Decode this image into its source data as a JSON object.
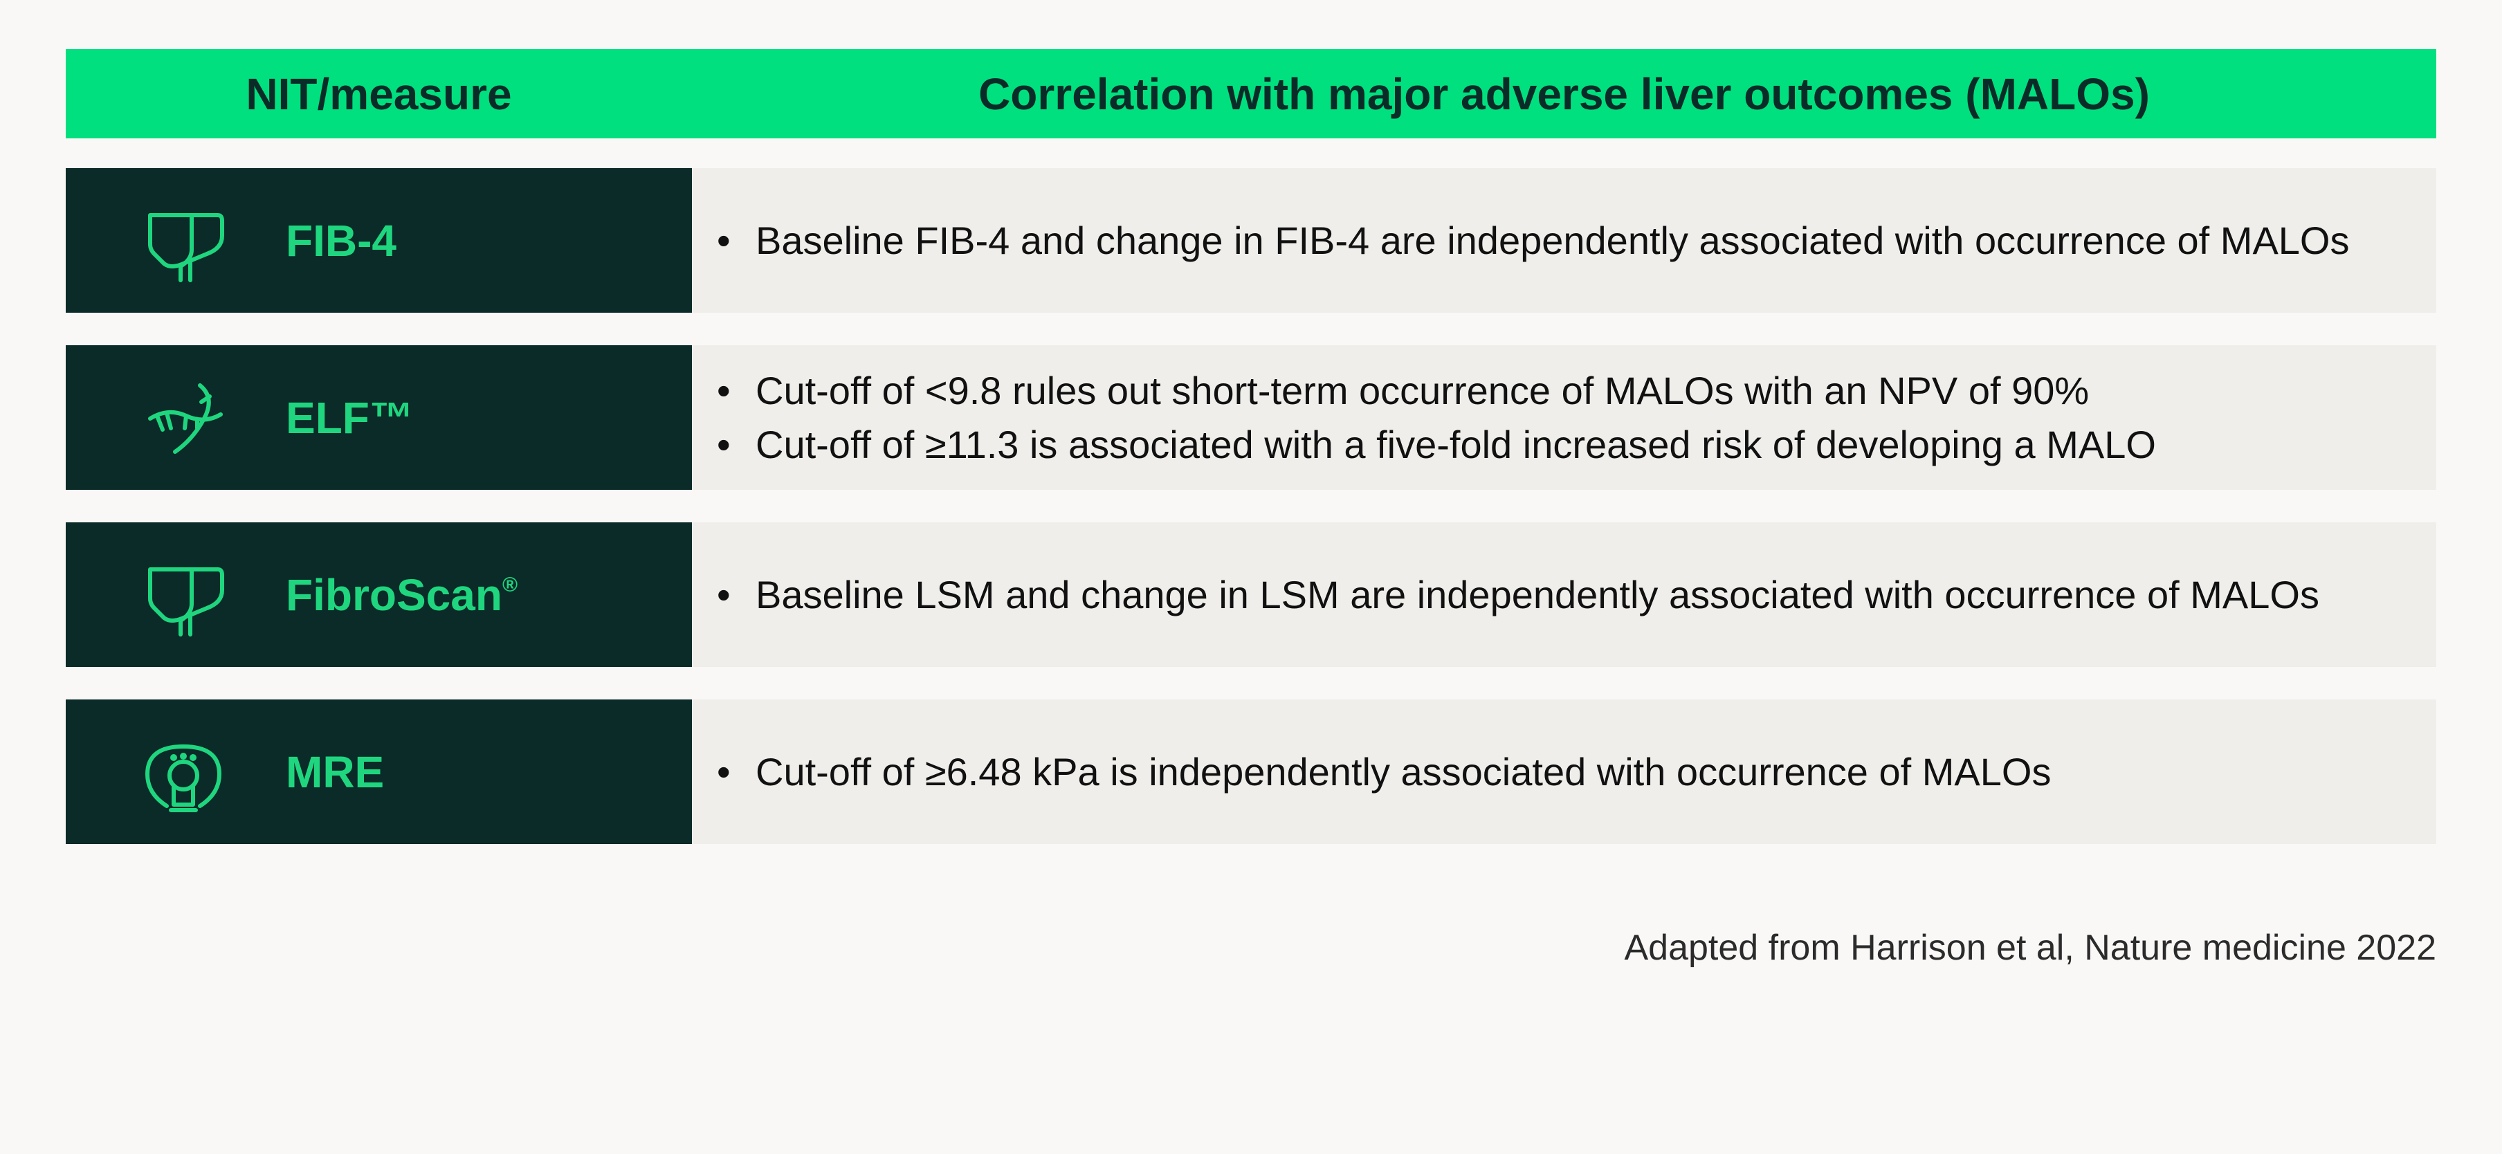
{
  "header": {
    "col1": "NIT/measure",
    "col2": "Correlation with major adverse liver outcomes (MALOs)"
  },
  "colors": {
    "header_bg": "#00e07e",
    "row_left_bg": "#0a2b28",
    "row_right_bg": "#efeeeb",
    "accent_green": "#1fd67f",
    "page_bg": "#f9f8f7"
  },
  "rows": [
    {
      "icon": "liver-icon",
      "label": "FIB-4",
      "label_sup": "",
      "bullets": [
        "Baseline FIB-4 and change in FIB-4 are independently associated with occurrence of MALOs"
      ]
    },
    {
      "icon": "dna-icon",
      "label": "ELF™",
      "label_sup": "",
      "bullets": [
        "Cut-off of <9.8 rules out short-term occurrence of MALOs with an NPV of 90%",
        "Cut-off of ≥11.3 is associated with a five-fold increased risk of developing a MALO"
      ]
    },
    {
      "icon": "liver-icon",
      "label": "FibroScan",
      "label_sup": "®",
      "bullets": [
        "Baseline LSM and change in LSM are independently associated with occurrence of MALOs"
      ]
    },
    {
      "icon": "mri-scanner-icon",
      "label": "MRE",
      "label_sup": "",
      "bullets": [
        "Cut-off of ≥6.48 kPa is independently associated with occurrence of MALOs"
      ]
    }
  ],
  "footnote": "Adapted from Harrison et al, Nature medicine 2022"
}
